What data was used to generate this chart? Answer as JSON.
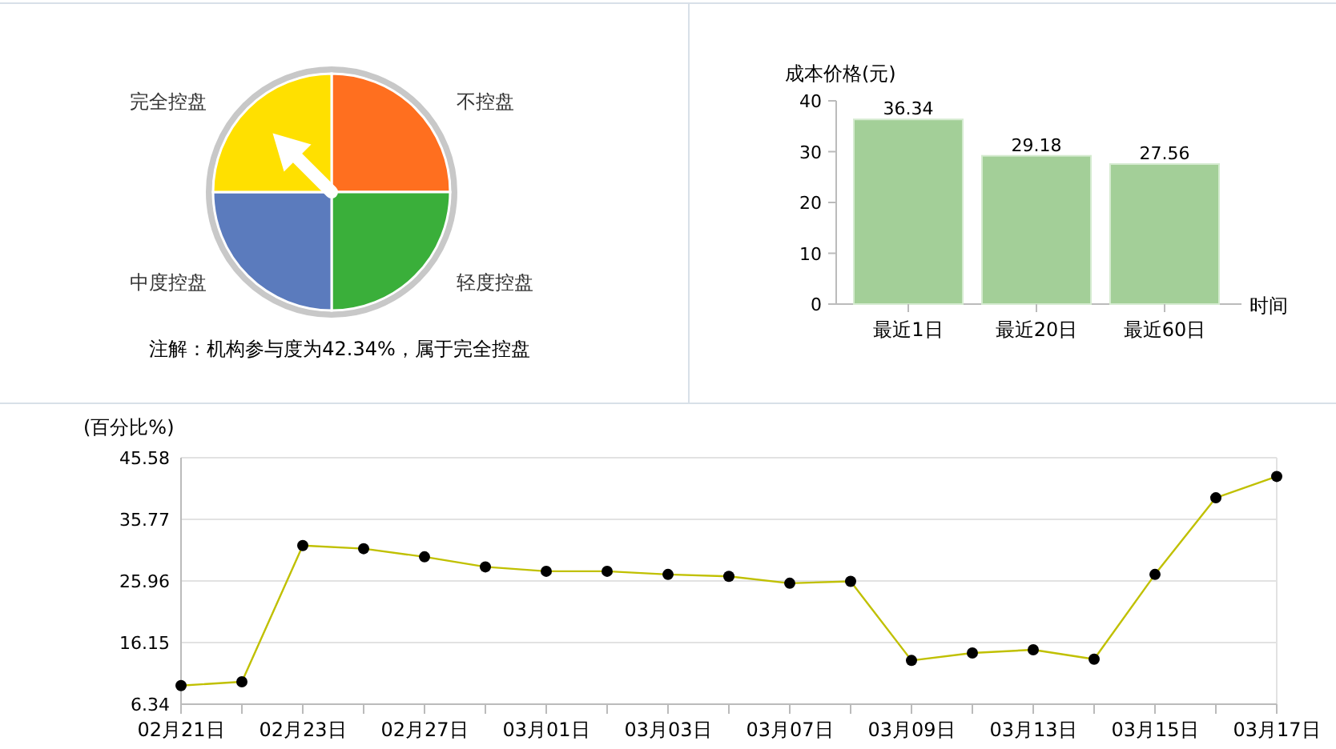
{
  "chart_data": [
    {
      "type": "pie",
      "categories": [
        "不控盘",
        "轻度控盘",
        "中度控盘",
        "完全控盘"
      ],
      "values": [
        25,
        25,
        25,
        25
      ],
      "colors": [
        "#ff6f1f",
        "#3aaf3a",
        "#5b7bbd",
        "#ffe000"
      ],
      "needle": "完全控盘",
      "annotations": [
        "注解：机构参与度为42.34%，属于完全控盘"
      ]
    },
    {
      "type": "bar",
      "ylabel": "成本价格(元)",
      "xlabel": "时间",
      "categories": [
        "最近1日",
        "最近20日",
        "最近60日"
      ],
      "values": [
        36.34,
        29.18,
        27.56
      ],
      "color": "#a3cf98",
      "ylim": [
        0,
        40
      ],
      "yticks": [
        0,
        10,
        20,
        30,
        40
      ],
      "data_labels": true
    },
    {
      "type": "line",
      "ylabel": "(百分比%)",
      "categories": [
        "02月21日",
        null,
        "02月23日",
        null,
        "02月27日",
        null,
        "03月01日",
        null,
        "03月03日",
        null,
        "03月07日",
        null,
        "03月09日",
        null,
        "03月13日",
        null,
        "03月15日",
        null,
        "03月17日"
      ],
      "series": [
        {
          "color": "#c0c000",
          "values": [
            9.3,
            9.9,
            31.6,
            31.1,
            29.8,
            28.2,
            27.5,
            27.5,
            27.0,
            26.7,
            25.6,
            25.9,
            13.3,
            14.5,
            15.0,
            13.5,
            27.0,
            39.2,
            42.6
          ]
        }
      ],
      "ylim": [
        6.34,
        45.58
      ],
      "yticks": [
        {
          "value": 6.34,
          "label": "6.34"
        },
        {
          "value": 16.15,
          "label": "16.15"
        },
        {
          "value": 25.96,
          "label": "25.96"
        },
        {
          "value": 35.77,
          "label": "35.77"
        },
        {
          "value": 45.58,
          "label": "45.58"
        }
      ],
      "grid": "y",
      "marker": "circle"
    }
  ]
}
